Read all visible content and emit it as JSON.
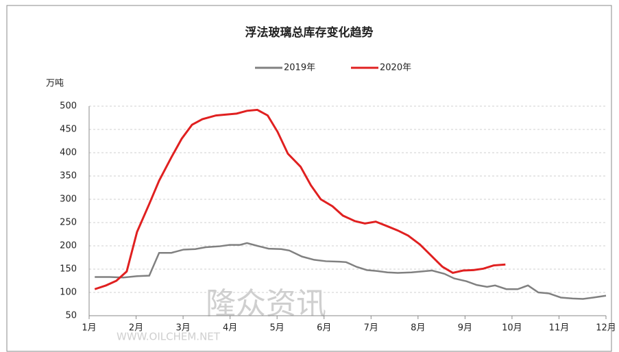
{
  "chart_data": {
    "type": "line",
    "title": "浮法玻璃总库存变化趋势",
    "y_label": "万吨",
    "watermark": [
      "隆众资讯",
      "WWW.OILCHEM.NET"
    ],
    "xlim": [
      1,
      12
    ],
    "xticks": [
      {
        "value": 1,
        "label": "1月"
      },
      {
        "value": 2,
        "label": "2月"
      },
      {
        "value": 3,
        "label": "3月"
      },
      {
        "value": 4,
        "label": "4月"
      },
      {
        "value": 5,
        "label": "5月"
      },
      {
        "value": 6,
        "label": "6月"
      },
      {
        "value": 7,
        "label": "7月"
      },
      {
        "value": 8,
        "label": "8月"
      },
      {
        "value": 9,
        "label": "9月"
      },
      {
        "value": 10,
        "label": "10月"
      },
      {
        "value": 11,
        "label": "11月"
      },
      {
        "value": 12,
        "label": "12月"
      }
    ],
    "ylim": [
      50,
      500
    ],
    "yticks": [
      50,
      100,
      150,
      200,
      250,
      300,
      350,
      400,
      450,
      500
    ],
    "grid": true,
    "series": [
      {
        "name": "2019年",
        "color": "#808080",
        "x": [
          1.12,
          1.44,
          1.73,
          2.02,
          2.28,
          2.49,
          2.75,
          3.01,
          3.26,
          3.48,
          3.77,
          3.99,
          4.21,
          4.36,
          4.58,
          4.82,
          5.09,
          5.26,
          5.53,
          5.79,
          6.04,
          6.33,
          6.47,
          6.69,
          6.91,
          7.13,
          7.35,
          7.57,
          7.86,
          8.08,
          8.3,
          8.56,
          8.77,
          9.03,
          9.25,
          9.47,
          9.64,
          9.88,
          10.12,
          10.34,
          10.56,
          10.78,
          11.04,
          11.29,
          11.51,
          11.73,
          12
        ],
        "values": [
          133,
          133,
          132,
          135,
          136,
          185,
          185,
          192,
          193,
          197,
          199,
          202,
          202,
          206,
          200,
          194,
          193,
          190,
          177,
          170,
          167,
          166,
          165,
          155,
          148,
          146,
          143,
          142,
          143,
          145,
          147,
          140,
          130,
          124,
          116,
          112,
          115,
          107,
          107,
          115,
          100,
          98,
          89,
          87,
          86,
          89,
          93
        ]
      },
      {
        "name": "2020年",
        "color": "#e02020",
        "x": [
          1.12,
          1.36,
          1.58,
          1.8,
          2.02,
          2.28,
          2.49,
          2.75,
          2.97,
          3.19,
          3.41,
          3.7,
          3.92,
          4.14,
          4.36,
          4.58,
          4.8,
          5.01,
          5.23,
          5.5,
          5.72,
          5.93,
          6.18,
          6.4,
          6.66,
          6.87,
          7.1,
          7.35,
          7.57,
          7.79,
          8.04,
          8.27,
          8.52,
          8.74,
          8.96,
          9.18,
          9.39,
          9.61,
          9.86
        ],
        "values": [
          107,
          115,
          125,
          145,
          230,
          290,
          340,
          390,
          430,
          460,
          472,
          480,
          482,
          484,
          490,
          492,
          480,
          445,
          398,
          370,
          330,
          300,
          285,
          265,
          253,
          248,
          252,
          242,
          233,
          222,
          203,
          180,
          155,
          142,
          147,
          148,
          151,
          158,
          160
        ]
      }
    ]
  }
}
